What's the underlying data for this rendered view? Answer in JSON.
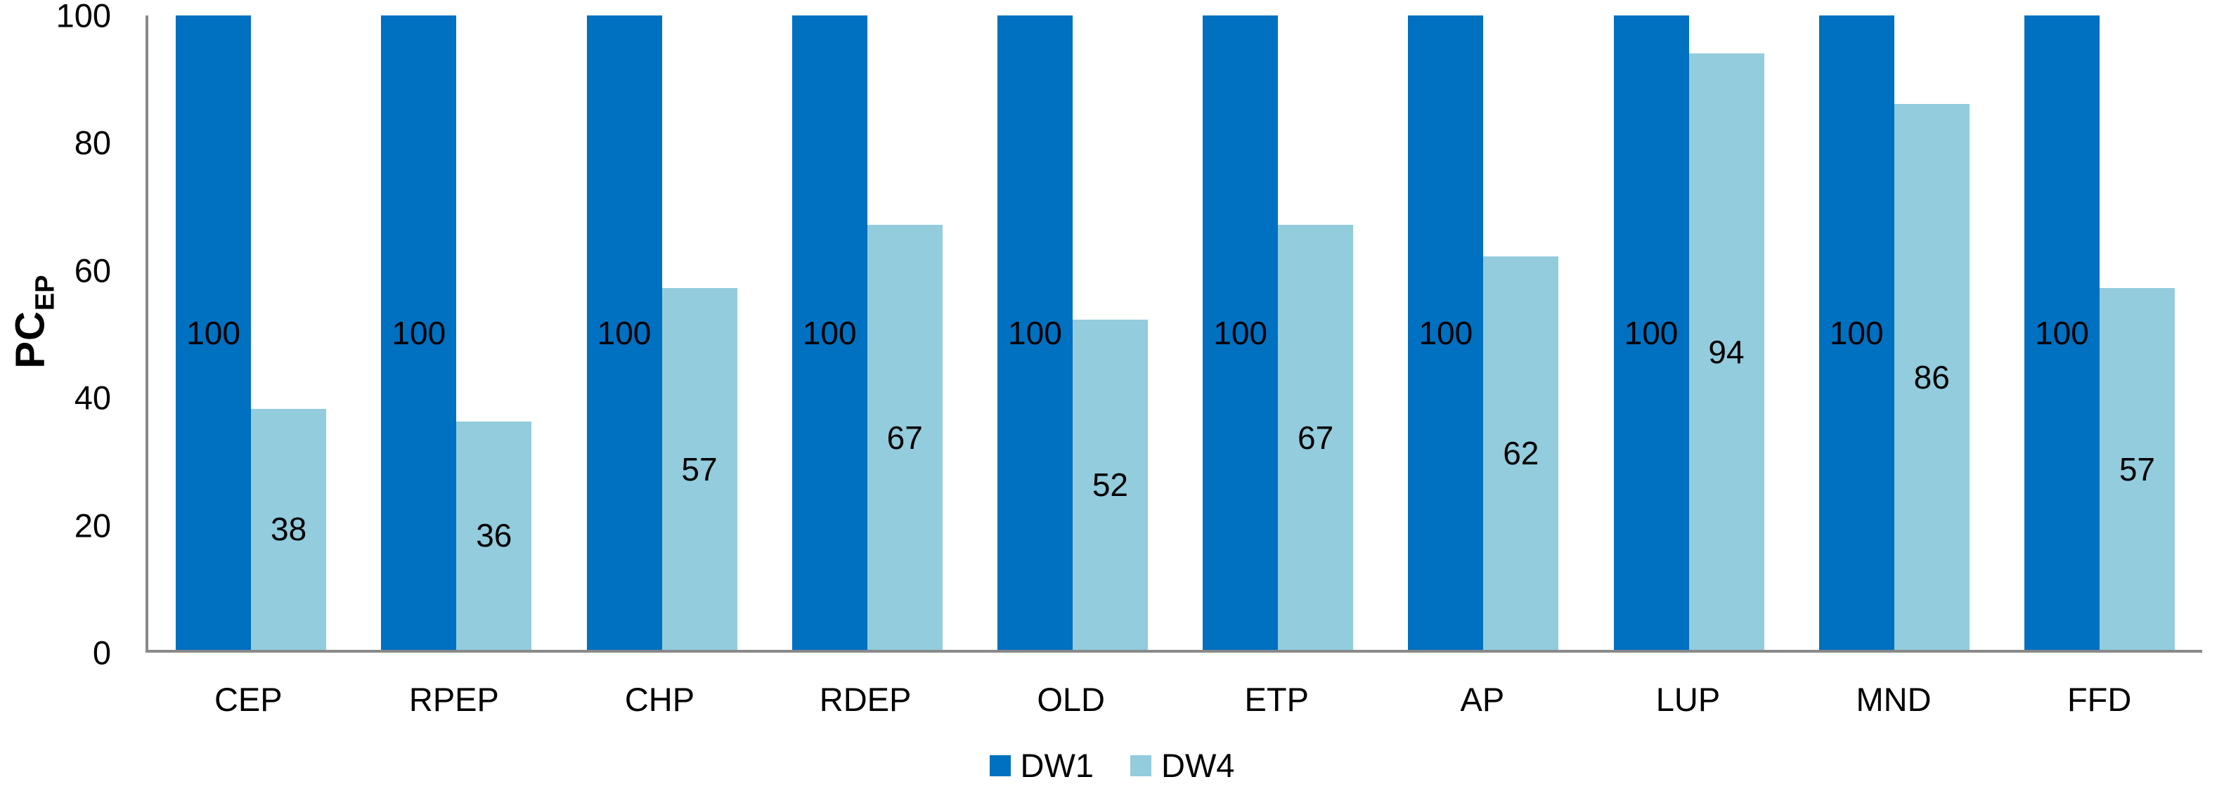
{
  "chart_data": {
    "type": "bar",
    "title": "",
    "ylabel_main": "PC",
    "ylabel_sub": "EP",
    "xlabel": "",
    "categories": [
      "CEP",
      "RPEP",
      "CHP",
      "RDEP",
      "OLD",
      "ETP",
      "AP",
      "LUP",
      "MND",
      "FFD"
    ],
    "series": [
      {
        "name": "DW1",
        "color": "#0070C0",
        "values": [
          100,
          100,
          100,
          100,
          100,
          100,
          100,
          100,
          100,
          100
        ]
      },
      {
        "name": "DW4",
        "color": "#92CCDD",
        "values": [
          38,
          36,
          57,
          67,
          52,
          67,
          62,
          94,
          86,
          57
        ]
      }
    ],
    "yticks": [
      0,
      20,
      40,
      60,
      80,
      100
    ],
    "ylim": [
      0,
      100
    ],
    "grid": false,
    "data_labels": "center",
    "legend_position": "bottom"
  },
  "colors": {
    "axis": "#898989",
    "text": "#000000",
    "background": "#FFFFFF",
    "series_dw1": "#0070C0",
    "series_dw4": "#92CCDD"
  }
}
